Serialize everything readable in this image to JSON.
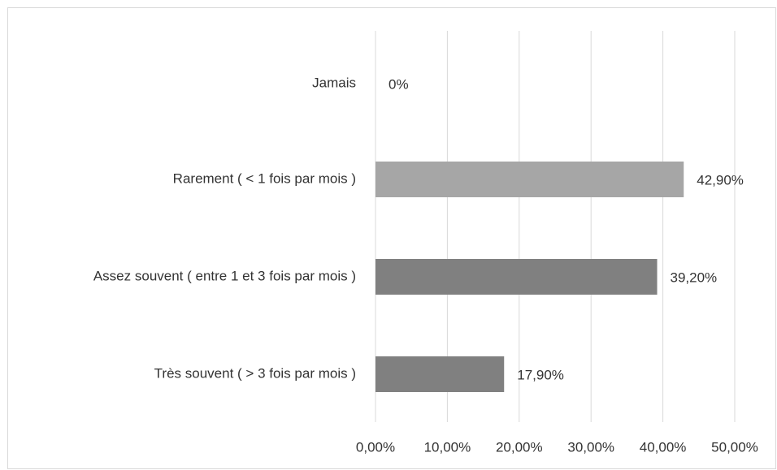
{
  "chart_data": {
    "type": "barh",
    "categories": [
      "Jamais",
      "Rarement ( < 1 fois par mois )",
      "Assez souvent ( entre 1 et 3 fois par mois )",
      "Très souvent ( > 3 fois par mois )"
    ],
    "values": [
      0,
      42.9,
      39.2,
      17.9
    ],
    "value_labels": [
      "0%",
      "42,90%",
      "39,20%",
      "17,90%"
    ],
    "colors": [
      "#808080",
      "#a6a6a6",
      "#808080",
      "#808080"
    ],
    "xlim": [
      0,
      50
    ],
    "xticks": [
      {
        "value": 0,
        "label": "0,00%"
      },
      {
        "value": 10,
        "label": "10,00%"
      },
      {
        "value": 20,
        "label": "20,00%"
      },
      {
        "value": 30,
        "label": "30,00%"
      },
      {
        "value": 40,
        "label": "40,00%"
      },
      {
        "value": 50,
        "label": "50,00%"
      }
    ],
    "grid": true
  }
}
